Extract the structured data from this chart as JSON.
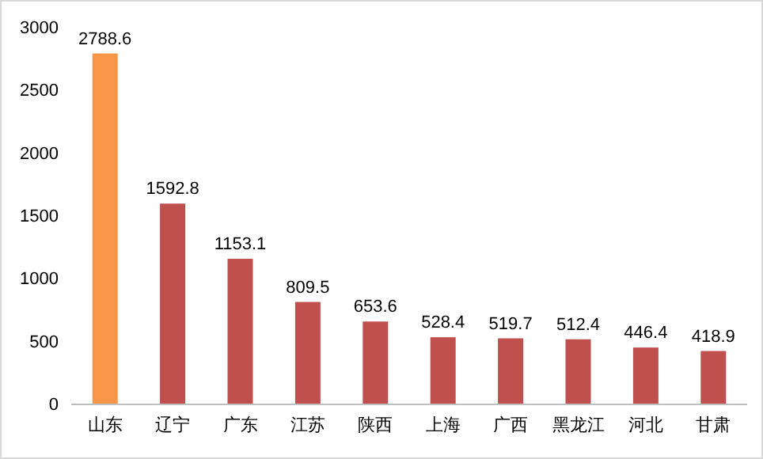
{
  "chart_data": {
    "type": "bar",
    "categories": [
      "山东",
      "辽宁",
      "广东",
      "江苏",
      "陕西",
      "上海",
      "广西",
      "黑龙江",
      "河北",
      "甘肃"
    ],
    "values": [
      2788.6,
      1592.8,
      1153.1,
      809.5,
      653.6,
      528.4,
      519.7,
      512.4,
      446.4,
      418.9
    ],
    "colors": [
      "#f79646",
      "#c0504d",
      "#c0504d",
      "#c0504d",
      "#c0504d",
      "#c0504d",
      "#c0504d",
      "#c0504d",
      "#c0504d",
      "#c0504d"
    ],
    "ylim": [
      0,
      3000
    ],
    "yticks": [
      0,
      500,
      1000,
      1500,
      2000,
      2500,
      3000
    ],
    "data_labels": true,
    "grid": false
  }
}
